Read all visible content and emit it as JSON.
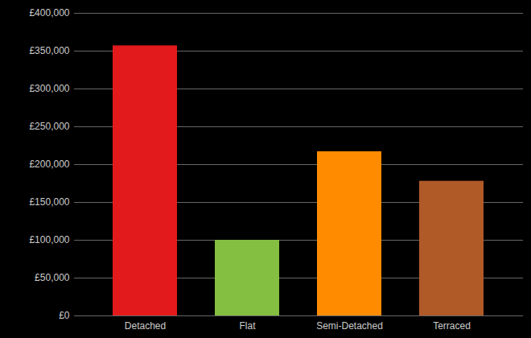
{
  "chart_data": {
    "type": "bar",
    "categories": [
      "Detached",
      "Flat",
      "Semi-Detached",
      "Terraced"
    ],
    "values": [
      357000,
      100000,
      217000,
      178000
    ],
    "colors": [
      "#e31a1c",
      "#84bf41",
      "#ff8c00",
      "#b05a28"
    ],
    "ylim": [
      0,
      400000
    ],
    "yticks": [
      {
        "value": 0,
        "label": "£0"
      },
      {
        "value": 50000,
        "label": "£50,000"
      },
      {
        "value": 100000,
        "label": "£100,000"
      },
      {
        "value": 150000,
        "label": "£150,000"
      },
      {
        "value": 200000,
        "label": "£200,000"
      },
      {
        "value": 250000,
        "label": "£250,000"
      },
      {
        "value": 300000,
        "label": "£300,000"
      },
      {
        "value": 350000,
        "label": "£350,000"
      },
      {
        "value": 400000,
        "label": "£400,000"
      }
    ],
    "grid": true
  }
}
